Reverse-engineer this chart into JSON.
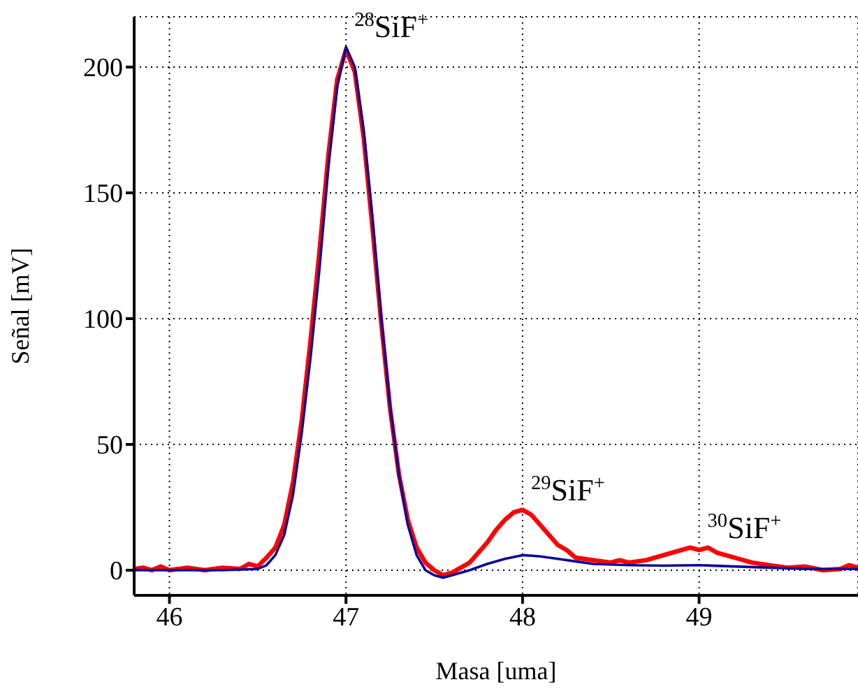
{
  "chart_data": {
    "type": "line",
    "xlabel": "Masa [uma]",
    "ylabel": "Señal  [mV]",
    "xlim": [
      45.8,
      49.9
    ],
    "ylim": [
      -10,
      220
    ],
    "xticks": [
      46,
      47,
      48,
      49
    ],
    "yticks": [
      0,
      50,
      100,
      150,
      200
    ],
    "grid": true,
    "marker": "none",
    "line_style": "solid",
    "series": [
      {
        "color": "#ff0000",
        "x": [
          45.8,
          45.85,
          45.9,
          45.95,
          46.0,
          46.1,
          46.2,
          46.3,
          46.4,
          46.45,
          46.5,
          46.55,
          46.6,
          46.65,
          46.7,
          46.75,
          46.8,
          46.85,
          46.9,
          46.95,
          47.0,
          47.05,
          47.1,
          47.15,
          47.2,
          47.25,
          47.3,
          47.35,
          47.4,
          47.45,
          47.5,
          47.55,
          47.6,
          47.65,
          47.7,
          47.75,
          47.8,
          47.85,
          47.9,
          47.95,
          48.0,
          48.05,
          48.1,
          48.15,
          48.2,
          48.25,
          48.3,
          48.4,
          48.5,
          48.55,
          48.6,
          48.7,
          48.8,
          48.9,
          48.95,
          49.0,
          49.05,
          49.1,
          49.2,
          49.3,
          49.4,
          49.5,
          49.6,
          49.7,
          49.8,
          49.85,
          49.9
        ],
        "values": [
          0.5,
          1,
          0,
          1.5,
          0,
          1,
          0,
          1,
          0.5,
          2.5,
          1.5,
          5,
          9,
          18,
          35,
          60,
          92,
          127,
          165,
          195,
          207,
          198,
          172,
          136,
          98,
          64,
          38,
          20,
          9,
          3,
          0,
          -2,
          -1,
          1,
          3,
          7,
          11,
          16,
          20,
          23,
          24,
          22,
          18,
          14,
          10,
          8,
          5,
          4,
          3,
          4,
          3,
          4,
          6,
          8,
          9,
          8,
          9,
          7,
          5,
          3,
          2,
          1,
          1.5,
          0,
          0.5,
          2,
          1
        ]
      },
      {
        "color": "#0a0a9a",
        "x": [
          45.8,
          46.0,
          46.3,
          46.5,
          46.55,
          46.6,
          46.65,
          46.7,
          46.75,
          46.8,
          46.85,
          46.9,
          46.95,
          47.0,
          47.05,
          47.1,
          47.15,
          47.2,
          47.25,
          47.3,
          47.35,
          47.4,
          47.45,
          47.5,
          47.55,
          47.6,
          47.7,
          47.8,
          47.9,
          48.0,
          48.1,
          48.2,
          48.3,
          48.4,
          48.6,
          48.8,
          49.0,
          49.2,
          49.4,
          49.6,
          49.9
        ],
        "values": [
          0,
          0,
          0,
          0.5,
          2,
          6,
          14,
          30,
          55,
          85,
          120,
          160,
          192,
          208,
          200,
          175,
          140,
          100,
          65,
          38,
          18,
          6,
          0,
          -2,
          -3,
          -2,
          0,
          2.5,
          4.5,
          6,
          5.5,
          4.5,
          3.5,
          2.5,
          2,
          1.8,
          2,
          1.5,
          1,
          0.5,
          0.5
        ]
      }
    ],
    "annotations": [
      {
        "text": "$^{28}$SiF$^{+}$",
        "x": 47.0,
        "y": 208
      },
      {
        "text": "$^{29}$SiF$^{+}$",
        "x": 48.0,
        "y": 24
      },
      {
        "text": "$^{30}$SiF$^{+}$",
        "x": 49.0,
        "y": 9
      }
    ]
  }
}
